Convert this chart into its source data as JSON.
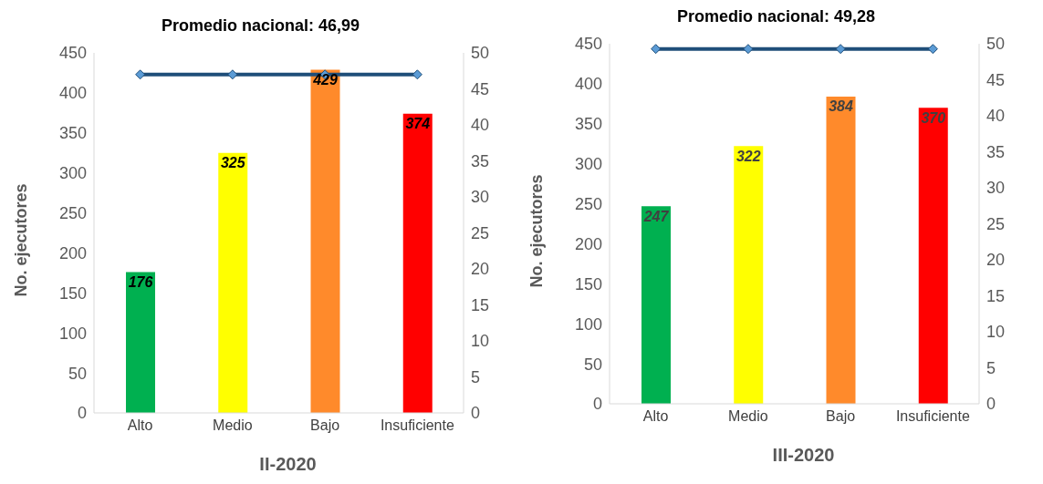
{
  "chart_data": [
    {
      "type": "bar",
      "xlabel": "II-2020",
      "ylabel": "No. ejecutores",
      "categories": [
        "Alto",
        "Medio",
        "Bajo",
        "Insuficiente"
      ],
      "series": [
        {
          "colors": [
            "#00b050",
            "#ffff00",
            "#ff8a2b",
            "#ff0000"
          ],
          "values": [
            176,
            325,
            429,
            374
          ],
          "value_labels": [
            "176",
            "325",
            "429",
            "374"
          ]
        },
        {
          "type": "line",
          "axis": "y2",
          "color": "#1f4e79",
          "values": [
            46.99,
            46.99,
            46.99,
            46.99
          ]
        }
      ],
      "marker": "diamond",
      "ylim": [
        0,
        450
      ],
      "yticks": [
        0,
        50,
        100,
        150,
        200,
        250,
        300,
        350,
        400,
        450
      ],
      "y2lim": [
        0,
        50
      ],
      "y2ticks": [
        0,
        5,
        10,
        15,
        20,
        25,
        30,
        35,
        40,
        45,
        50
      ],
      "annotations": [
        "Promedio nacional: 46,99"
      ],
      "legend": false,
      "grid": false
    },
    {
      "type": "bar",
      "xlabel": "III-2020",
      "ylabel": "No. ejecutores",
      "categories": [
        "Alto",
        "Medio",
        "Bajo",
        "Insuficiente"
      ],
      "series": [
        {
          "colors": [
            "#00b050",
            "#ffff00",
            "#ff8a2b",
            "#ff0000"
          ],
          "values": [
            247,
            322,
            384,
            370
          ],
          "value_labels": [
            "247",
            "322",
            "384",
            "370"
          ]
        },
        {
          "type": "line",
          "axis": "y2",
          "color": "#1f4e79",
          "values": [
            49.28,
            49.28,
            49.28,
            49.28
          ]
        }
      ],
      "marker": "diamond",
      "ylim": [
        0,
        450
      ],
      "yticks": [
        0,
        50,
        100,
        150,
        200,
        250,
        300,
        350,
        400,
        450
      ],
      "y2lim": [
        0,
        50
      ],
      "y2ticks": [
        0,
        5,
        10,
        15,
        20,
        25,
        30,
        35,
        40,
        45,
        50
      ],
      "annotations": [
        "Promedio nacional: 49,28"
      ],
      "legend": false,
      "grid": false
    }
  ]
}
